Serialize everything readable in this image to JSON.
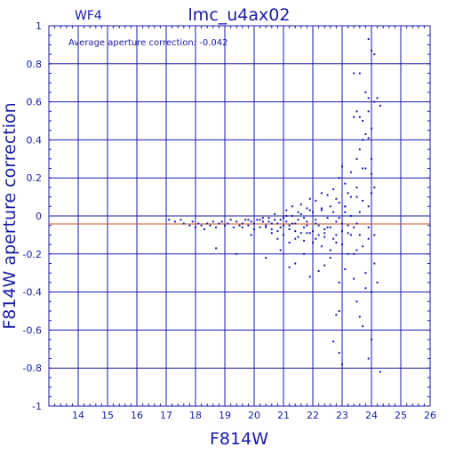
{
  "chart_data": {
    "type": "scatter",
    "title": "lmc_u4ax02",
    "corner_label": "WF4",
    "annotation": "Average aperture correction: -0.042",
    "xlabel": "F814W",
    "ylabel": "F814W aperture correction",
    "xlim": [
      13,
      26
    ],
    "ylim": [
      -1,
      1
    ],
    "x_ticks": [
      "14",
      "15",
      "16",
      "17",
      "18",
      "19",
      "20",
      "21",
      "22",
      "23",
      "24",
      "25",
      "26"
    ],
    "y_ticks": [
      "-1",
      "-0.8",
      "-0.6",
      "-0.4",
      "-0.2",
      "0",
      "0.2",
      "0.4",
      "0.6",
      "0.8",
      "1"
    ],
    "grid": true,
    "reference_line": {
      "y": -0.042,
      "color": "#cc5522"
    },
    "colors": {
      "axis": "#1a1aa8",
      "points": "#1a1aa8",
      "reference": "#cc5522"
    },
    "series": [
      {
        "points": [
          [
            17.1,
            -0.02
          ],
          [
            17.3,
            -0.03
          ],
          [
            17.5,
            -0.02
          ],
          [
            17.6,
            -0.04
          ],
          [
            17.8,
            -0.05
          ],
          [
            17.9,
            -0.03
          ],
          [
            18.0,
            -0.06
          ],
          [
            18.1,
            -0.04
          ],
          [
            18.2,
            -0.05
          ],
          [
            18.3,
            -0.07
          ],
          [
            18.4,
            -0.04
          ],
          [
            18.5,
            -0.05
          ],
          [
            18.6,
            -0.03
          ],
          [
            18.7,
            -0.06
          ],
          [
            18.8,
            -0.04
          ],
          [
            18.9,
            -0.03
          ],
          [
            19.0,
            -0.05
          ],
          [
            19.1,
            -0.04
          ],
          [
            19.2,
            -0.02
          ],
          [
            19.3,
            -0.06
          ],
          [
            19.4,
            -0.03
          ],
          [
            19.5,
            -0.05
          ],
          [
            19.6,
            -0.04
          ],
          [
            19.7,
            -0.02
          ],
          [
            19.8,
            -0.05
          ],
          [
            19.9,
            -0.03
          ],
          [
            20.0,
            -0.04
          ],
          [
            20.1,
            -0.02
          ],
          [
            20.2,
            -0.06
          ],
          [
            20.3,
            -0.03
          ],
          [
            20.4,
            -0.05
          ],
          [
            20.5,
            -0.01
          ],
          [
            20.6,
            -0.07
          ],
          [
            20.7,
            -0.02
          ],
          [
            20.8,
            -0.04
          ],
          [
            20.9,
            -0.06
          ],
          [
            21.0,
            -0.01
          ],
          [
            21.1,
            -0.03
          ],
          [
            21.2,
            -0.05
          ],
          [
            21.3,
            0.0
          ],
          [
            21.4,
            -0.08
          ],
          [
            21.5,
            -0.02
          ],
          [
            21.6,
            0.01
          ],
          [
            21.7,
            -0.06
          ],
          [
            21.8,
            -0.03
          ],
          [
            21.9,
            -0.09
          ],
          [
            22.0,
            0.02
          ],
          [
            22.1,
            -0.04
          ],
          [
            22.2,
            -0.1
          ],
          [
            22.3,
            0.03
          ],
          [
            22.4,
            -0.07
          ],
          [
            22.5,
            -0.01
          ],
          [
            22.6,
            0.05
          ],
          [
            22.7,
            -0.12
          ],
          [
            22.8,
            -0.03
          ],
          [
            22.9,
            0.07
          ],
          [
            23.0,
            -0.15
          ],
          [
            23.1,
            0.02
          ],
          [
            23.2,
            -0.05
          ],
          [
            23.3,
            0.1
          ],
          [
            23.4,
            -0.2
          ],
          [
            23.5,
            0.15
          ],
          [
            23.6,
            -0.1
          ],
          [
            23.7,
            0.25
          ],
          [
            23.8,
            -0.3
          ],
          [
            23.9,
            0.05
          ],
          [
            24.0,
            0.3
          ],
          [
            24.1,
            -0.25
          ],
          [
            24.2,
            0.62
          ],
          [
            24.3,
            0.58
          ],
          [
            18.7,
            -0.17
          ],
          [
            19.4,
            -0.2
          ],
          [
            19.9,
            -0.1
          ],
          [
            20.4,
            -0.22
          ],
          [
            20.9,
            -0.18
          ],
          [
            21.2,
            -0.27
          ],
          [
            21.4,
            -0.25
          ],
          [
            21.7,
            -0.2
          ],
          [
            21.9,
            -0.32
          ],
          [
            22.2,
            -0.29
          ],
          [
            22.4,
            -0.26
          ],
          [
            22.6,
            -0.22
          ],
          [
            22.9,
            -0.35
          ],
          [
            23.1,
            -0.28
          ],
          [
            22.8,
            -0.52
          ],
          [
            22.9,
            -0.5
          ],
          [
            22.7,
            -0.66
          ],
          [
            22.9,
            -0.72
          ],
          [
            23.0,
            -0.78
          ],
          [
            23.5,
            -0.45
          ],
          [
            23.6,
            -0.53
          ],
          [
            23.7,
            -0.58
          ],
          [
            23.9,
            -0.75
          ],
          [
            24.0,
            -0.65
          ],
          [
            24.3,
            -0.82
          ],
          [
            23.8,
            -0.38
          ],
          [
            24.0,
            -0.4
          ],
          [
            24.2,
            -0.35
          ],
          [
            23.4,
            -0.33
          ],
          [
            23.2,
            -0.2
          ],
          [
            21.1,
            0.03
          ],
          [
            21.3,
            0.05
          ],
          [
            21.6,
            0.06
          ],
          [
            21.8,
            0.04
          ],
          [
            21.9,
            0.09
          ],
          [
            22.1,
            0.08
          ],
          [
            22.3,
            0.12
          ],
          [
            22.5,
            0.11
          ],
          [
            22.7,
            0.14
          ],
          [
            22.9,
            0.2
          ],
          [
            23.1,
            0.17
          ],
          [
            23.3,
            0.23
          ],
          [
            23.5,
            0.3
          ],
          [
            23.6,
            0.35
          ],
          [
            23.7,
            0.5
          ],
          [
            23.8,
            0.43
          ],
          [
            23.9,
            0.41
          ],
          [
            24.0,
            0.22
          ],
          [
            24.1,
            0.15
          ],
          [
            23.4,
            0.52
          ],
          [
            23.5,
            0.55
          ],
          [
            23.6,
            0.52
          ],
          [
            23.7,
            0.4
          ],
          [
            23.9,
            0.55
          ],
          [
            24.0,
            0.46
          ],
          [
            24.1,
            0.6
          ],
          [
            23.9,
            0.93
          ],
          [
            24.0,
            0.87
          ],
          [
            24.1,
            0.85
          ],
          [
            23.4,
            0.75
          ],
          [
            23.6,
            0.75
          ],
          [
            23.8,
            0.65
          ],
          [
            23.9,
            0.62
          ],
          [
            23.8,
            0.25
          ],
          [
            23.5,
            0.1
          ],
          [
            23.6,
            0.02
          ],
          [
            23.2,
            0.12
          ],
          [
            23.1,
            0.05
          ],
          [
            22.8,
            0.09
          ],
          [
            23.0,
            0.26
          ],
          [
            21.5,
            -0.11
          ],
          [
            21.7,
            -0.13
          ],
          [
            21.8,
            -0.09
          ],
          [
            22.0,
            -0.14
          ],
          [
            22.1,
            -0.12
          ],
          [
            22.3,
            -0.16
          ],
          [
            22.4,
            -0.11
          ],
          [
            22.6,
            -0.18
          ],
          [
            22.8,
            -0.14
          ],
          [
            23.0,
            -0.08
          ],
          [
            23.3,
            -0.1
          ],
          [
            23.5,
            -0.18
          ],
          [
            23.7,
            -0.16
          ],
          [
            23.9,
            -0.12
          ],
          [
            24.1,
            -0.1
          ],
          [
            20.6,
            -0.09
          ],
          [
            20.8,
            -0.12
          ],
          [
            21.0,
            -0.1
          ],
          [
            21.2,
            -0.14
          ],
          [
            21.4,
            -0.12
          ],
          [
            20.3,
            -0.01
          ],
          [
            20.5,
            -0.03
          ],
          [
            20.7,
            0.01
          ],
          [
            20.9,
            -0.02
          ],
          [
            21.1,
            0.0
          ],
          [
            21.3,
            -0.04
          ],
          [
            21.5,
            0.02
          ],
          [
            21.7,
            -0.01
          ],
          [
            21.9,
            0.03
          ],
          [
            22.1,
            -0.02
          ],
          [
            22.3,
            0.04
          ],
          [
            22.5,
            -0.06
          ],
          [
            22.7,
            0.02
          ],
          [
            22.9,
            -0.01
          ],
          [
            23.1,
            0.05
          ],
          [
            23.3,
            0.0
          ],
          [
            23.5,
            -0.04
          ],
          [
            23.7,
            0.08
          ],
          [
            23.9,
            -0.06
          ],
          [
            24.0,
            0.12
          ],
          [
            19.6,
            -0.06
          ],
          [
            19.8,
            -0.02
          ],
          [
            20.0,
            -0.07
          ],
          [
            20.2,
            -0.02
          ],
          [
            20.4,
            -0.06
          ],
          [
            20.6,
            -0.04
          ],
          [
            20.8,
            -0.08
          ],
          [
            21.0,
            -0.05
          ],
          [
            21.2,
            -0.07
          ],
          [
            21.4,
            -0.04
          ],
          [
            21.6,
            -0.09
          ],
          [
            21.8,
            -0.05
          ],
          [
            22.0,
            -0.08
          ],
          [
            22.2,
            -0.05
          ],
          [
            22.4,
            -0.09
          ],
          [
            22.6,
            -0.06
          ],
          [
            22.8,
            -0.1
          ],
          [
            23.0,
            -0.04
          ],
          [
            23.2,
            -0.09
          ],
          [
            23.4,
            -0.06
          ]
        ]
      }
    ]
  }
}
